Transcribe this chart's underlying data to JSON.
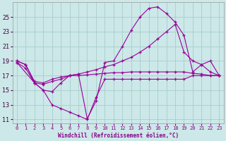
{
  "xlabel": "Windchill (Refroidissement éolien,°C)",
  "bg_color": "#cce8e8",
  "grid_color": "#aacccc",
  "line_color": "#990099",
  "xlim": [
    -0.5,
    23.5
  ],
  "ylim": [
    10.5,
    27.0
  ],
  "yticks": [
    11,
    13,
    15,
    17,
    19,
    21,
    23,
    25
  ],
  "xticks": [
    0,
    1,
    2,
    3,
    4,
    5,
    6,
    7,
    8,
    9,
    10,
    11,
    12,
    13,
    14,
    15,
    16,
    17,
    18,
    19,
    20,
    21,
    22,
    23
  ],
  "series": [
    {
      "x": [
        0,
        1,
        2,
        3,
        4,
        5,
        6,
        7,
        8,
        9,
        10,
        11,
        12,
        13,
        14,
        15,
        16,
        17,
        18,
        19,
        20,
        21,
        22,
        23
      ],
      "y": [
        19.0,
        18.5,
        16.0,
        15.0,
        13.0,
        12.5,
        12.0,
        11.5,
        11.0,
        14.0,
        16.5,
        16.5,
        16.5,
        16.5,
        16.5,
        16.5,
        16.5,
        16.5,
        16.5,
        16.5,
        17.0,
        17.0,
        17.0,
        17.0
      ]
    },
    {
      "x": [
        0,
        1,
        2,
        3,
        4,
        5,
        6,
        7,
        8,
        9,
        10,
        11,
        12,
        13,
        14,
        15,
        16,
        17,
        18,
        19,
        20,
        21,
        22,
        23
      ],
      "y": [
        19.0,
        18.5,
        16.2,
        16.0,
        16.5,
        16.8,
        17.0,
        17.0,
        17.1,
        17.2,
        17.3,
        17.4,
        17.4,
        17.5,
        17.5,
        17.5,
        17.5,
        17.5,
        17.5,
        17.5,
        17.3,
        17.2,
        17.0,
        17.0
      ]
    },
    {
      "x": [
        0,
        2,
        3,
        4,
        5,
        6,
        7,
        8,
        9,
        10,
        11,
        12,
        13,
        14,
        15,
        16,
        17,
        18,
        19,
        20,
        21,
        22,
        23
      ],
      "y": [
        18.8,
        16.0,
        15.0,
        14.8,
        16.0,
        17.0,
        17.2,
        11.1,
        13.5,
        18.8,
        19.0,
        21.0,
        23.2,
        25.0,
        26.2,
        26.4,
        25.5,
        24.3,
        22.5,
        17.5,
        18.5,
        19.0,
        17.0
      ]
    },
    {
      "x": [
        0,
        1,
        2,
        3,
        4,
        5,
        6,
        7,
        8,
        9,
        10,
        11,
        12,
        13,
        14,
        15,
        16,
        17,
        18,
        19,
        20,
        21,
        22,
        23
      ],
      "y": [
        18.8,
        18.0,
        16.0,
        15.8,
        16.2,
        16.5,
        17.0,
        17.2,
        17.5,
        17.8,
        18.2,
        18.5,
        19.0,
        19.5,
        20.2,
        21.0,
        22.0,
        23.0,
        24.0,
        20.2,
        19.0,
        18.5,
        17.5,
        17.0
      ]
    }
  ]
}
